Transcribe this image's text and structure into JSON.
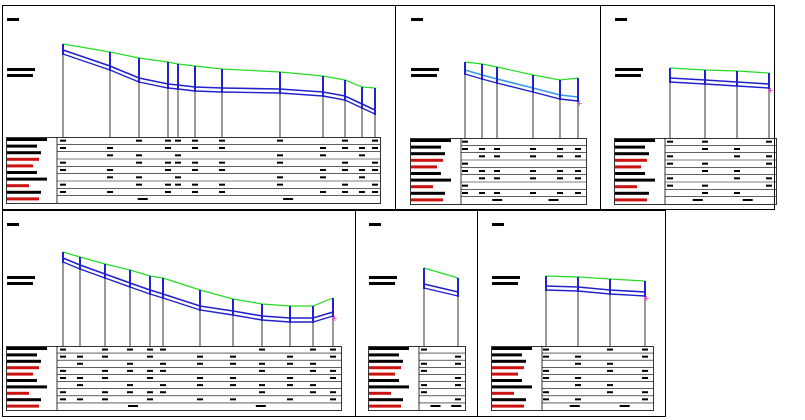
{
  "colors": {
    "background": "#ffffff",
    "frame": "#000000",
    "label_block": "#000000",
    "label_block_highlight": "#cc1111",
    "ground_line": "#22dd22",
    "pipe_line": "#2222cc",
    "pipe_line_light": "#3399ee",
    "marker": "#ee22cc"
  },
  "drawing": {
    "panel_count": 6,
    "panels": [
      {
        "id": "panel-1",
        "station_count": 12
      },
      {
        "id": "panel-2",
        "station_count": 6
      },
      {
        "id": "panel-3",
        "station_count": 4
      },
      {
        "id": "panel-4",
        "station_count": 12
      },
      {
        "id": "panel-5",
        "station_count": 2
      },
      {
        "id": "panel-6",
        "station_count": 4
      }
    ]
  }
}
